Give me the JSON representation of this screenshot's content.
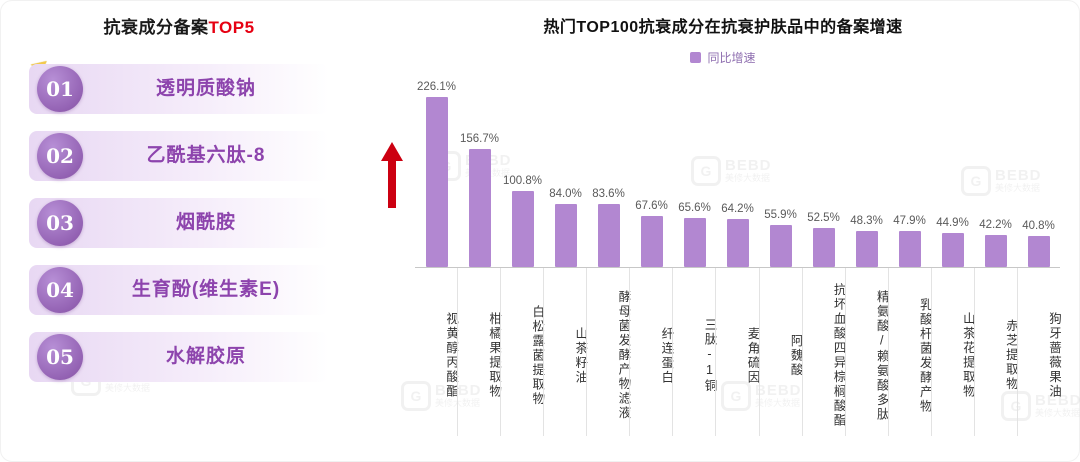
{
  "left_panel": {
    "title_prefix": "抗衰成分备案",
    "title_highlight": "TOP5",
    "items": [
      {
        "rank": "01",
        "label": "透明质酸钠"
      },
      {
        "rank": "02",
        "label": "乙酰基六肽-8"
      },
      {
        "rank": "03",
        "label": "烟酰胺"
      },
      {
        "rank": "04",
        "label": "生育酚(维生素E)"
      },
      {
        "rank": "05",
        "label": "水解胶原"
      }
    ]
  },
  "chart_data": {
    "type": "bar",
    "title": "热门TOP100抗衰成分在抗衰护肤品中的备案增速",
    "legend": "同比增速",
    "legend_position": "top",
    "categories": [
      "视黄醇丙酸酯",
      "柑橘果提取物",
      "白松露菌提取物",
      "山茶籽油",
      "酵母菌发酵产物滤液",
      "纤连蛋白",
      "三肽-1铜",
      "麦角硫因",
      "阿魏酸",
      "抗坏血酸四异棕榈酸酯",
      "精氨酸/赖氨酸多肽",
      "乳酸杆菌发酵产物",
      "山茶花提取物",
      "赤芝提取物",
      "狗牙蔷薇果油"
    ],
    "values": [
      226.1,
      156.7,
      100.8,
      84.0,
      83.6,
      67.6,
      65.6,
      64.2,
      55.9,
      52.5,
      48.3,
      47.9,
      44.9,
      42.2,
      40.8
    ],
    "unit": "%",
    "xlabel": "",
    "ylabel": "",
    "ylim": [
      0,
      240
    ],
    "grid": false,
    "bar_color": "#b287d1",
    "accent_red": "#cc0011"
  },
  "watermark": {
    "logo": "G",
    "line1": "BEBD",
    "line2": "美修大数据"
  }
}
